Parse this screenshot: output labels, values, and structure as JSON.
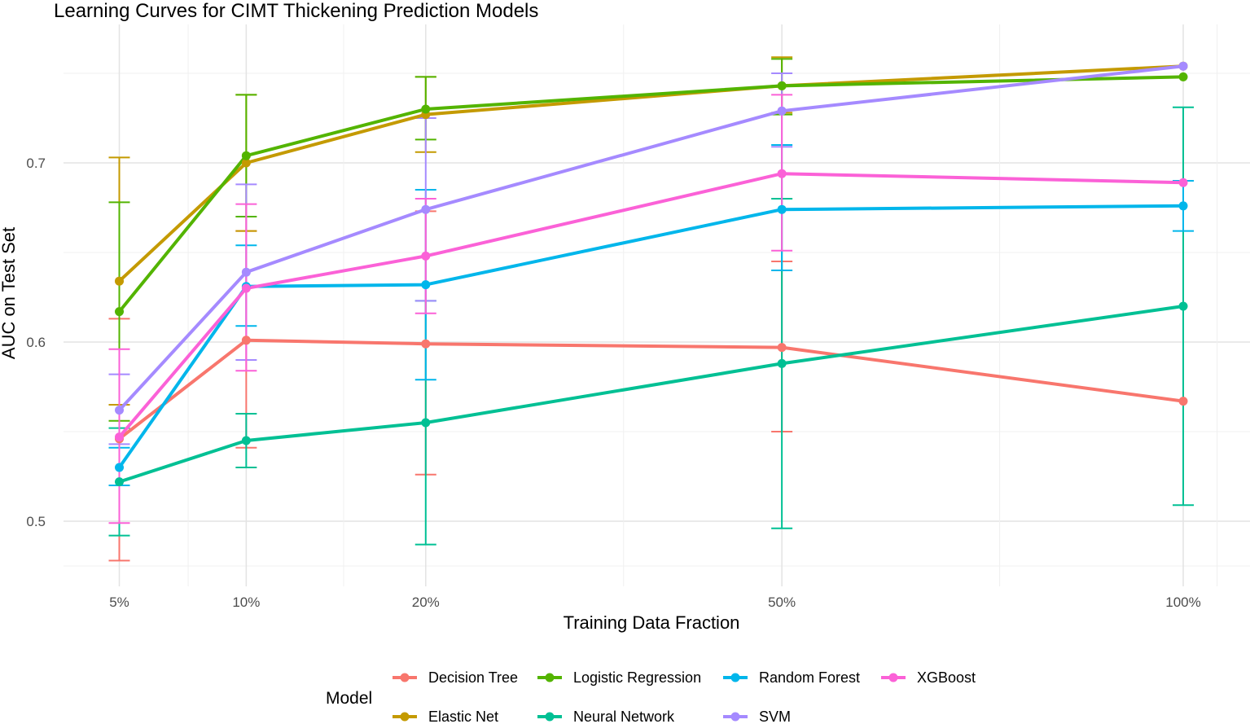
{
  "chart_data": {
    "type": "line",
    "title": "Learning Curves for CIMT Thickening Prediction Models",
    "xlabel": "Training Data Fraction",
    "ylabel": "AUC on Test Set",
    "x": [
      0.05,
      0.1,
      0.2,
      0.5,
      1.0
    ],
    "x_tick_labels": [
      "5%",
      "10%",
      "20%",
      "50%",
      "100%"
    ],
    "y_ticks": [
      0.5,
      0.6,
      0.7
    ],
    "y_tick_labels": [
      "0.5",
      "0.6",
      "0.7"
    ],
    "xlim": [
      0.0,
      1.05
    ],
    "ylim": [
      0.455,
      0.77
    ],
    "x_scale": "sqrt",
    "grid": true,
    "legend_title": "Model",
    "legend_position": "bottom",
    "error_bars": true,
    "series": [
      {
        "name": "Decision Tree",
        "color": "#F8766D",
        "values": [
          0.546,
          0.601,
          0.599,
          0.597,
          0.567
        ],
        "lower": [
          0.478,
          0.541,
          0.526,
          0.55,
          0.567
        ],
        "upper": [
          0.613,
          0.662,
          0.673,
          0.645,
          0.567
        ]
      },
      {
        "name": "Elastic Net",
        "color": "#C49A00",
        "values": [
          0.634,
          0.7,
          0.727,
          0.743,
          0.754
        ],
        "lower": [
          0.565,
          0.662,
          0.706,
          0.728,
          0.754
        ],
        "upper": [
          0.703,
          0.738,
          0.748,
          0.759,
          0.754
        ]
      },
      {
        "name": "Logistic Regression",
        "color": "#53B400",
        "values": [
          0.617,
          0.704,
          0.73,
          0.743,
          0.748
        ],
        "lower": [
          0.556,
          0.67,
          0.713,
          0.727,
          0.748
        ],
        "upper": [
          0.678,
          0.738,
          0.748,
          0.758,
          0.748
        ]
      },
      {
        "name": "Neural Network",
        "color": "#00C094",
        "values": [
          0.522,
          0.545,
          0.555,
          0.588,
          0.62
        ],
        "lower": [
          0.492,
          0.53,
          0.487,
          0.496,
          0.509
        ],
        "upper": [
          0.552,
          0.56,
          0.623,
          0.68,
          0.731
        ]
      },
      {
        "name": "Random Forest",
        "color": "#00B6EB",
        "values": [
          0.53,
          0.631,
          0.632,
          0.674,
          0.676
        ],
        "lower": [
          0.52,
          0.609,
          0.579,
          0.64,
          0.662
        ],
        "upper": [
          0.541,
          0.654,
          0.685,
          0.71,
          0.69
        ]
      },
      {
        "name": "SVM",
        "color": "#A58AFF",
        "values": [
          0.562,
          0.639,
          0.674,
          0.729,
          0.754
        ],
        "lower": [
          0.543,
          0.59,
          0.623,
          0.709,
          0.754
        ],
        "upper": [
          0.582,
          0.688,
          0.725,
          0.75,
          0.754
        ]
      },
      {
        "name": "XGBoost",
        "color": "#FB61D7",
        "values": [
          0.547,
          0.63,
          0.648,
          0.694,
          0.689
        ],
        "lower": [
          0.499,
          0.584,
          0.616,
          0.651,
          0.689
        ],
        "upper": [
          0.596,
          0.677,
          0.68,
          0.738,
          0.689
        ]
      }
    ]
  }
}
